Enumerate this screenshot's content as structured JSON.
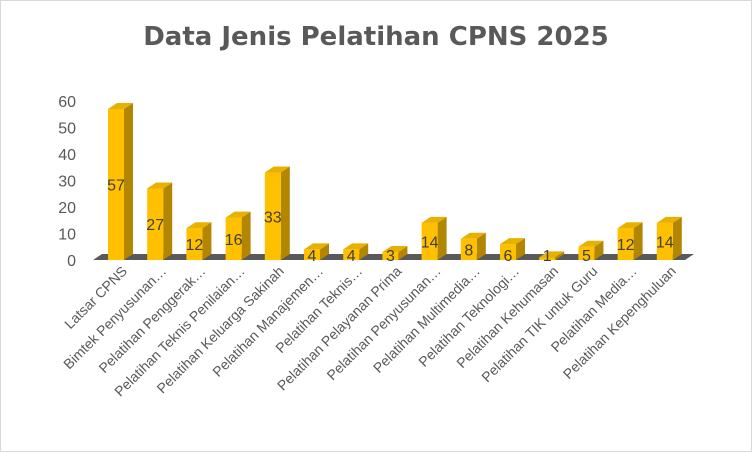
{
  "chart_data": {
    "type": "bar",
    "title": "Data Jenis Pelatihan CPNS 2025",
    "xlabel": "",
    "ylabel": "",
    "ylim": [
      0,
      60
    ],
    "yticks": [
      "0",
      "10",
      "20",
      "30",
      "40",
      "50",
      "60"
    ],
    "grid": false,
    "legend": "none",
    "colors": {
      "bar_front": "#FFC000",
      "bar_top": "#E8B000",
      "bar_side": "#B28600",
      "floor": "#595959"
    },
    "categories": [
      "Latsar CPNS",
      "Bimtek Penyusunan…",
      "Pelatihan Penggerak…",
      "Pelatihan Teknis Penilaian…",
      "Pelatihan Keluarga Sakinah",
      "Pelatihan Manajemen…",
      "Pelatihan Teknis…",
      "Pelatihan Pelayanan Prima",
      "Pelatihan Penyusunan…",
      "Pelatihan Multimedia…",
      "Pelatihan Teknologi…",
      "Pelatihan Kehumasan",
      "Pelatihan TIK untuk Guru",
      "Pelatihan Media…",
      "Pelatihan Kepenghuluan"
    ],
    "values": [
      57,
      27,
      12,
      16,
      33,
      4,
      4,
      3,
      14,
      8,
      6,
      1,
      5,
      12,
      14
    ]
  }
}
